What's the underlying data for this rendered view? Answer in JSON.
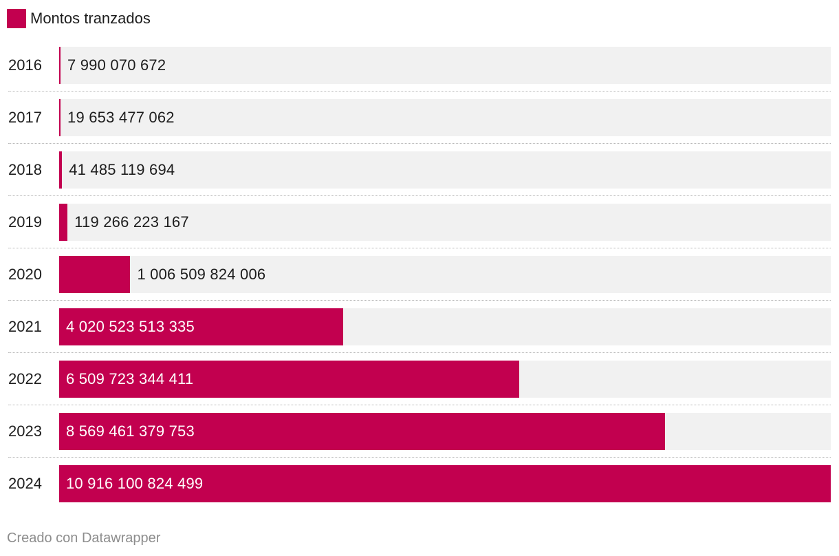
{
  "legend": {
    "label": "Montos tranzados",
    "color": "#c2004f"
  },
  "chart_data": {
    "type": "bar",
    "orientation": "horizontal",
    "categories": [
      "2016",
      "2017",
      "2018",
      "2019",
      "2020",
      "2021",
      "2022",
      "2023",
      "2024"
    ],
    "series": [
      {
        "name": "Montos tranzados",
        "color": "#c2004f",
        "values": [
          7990070672,
          19653477062,
          41485119694,
          119266223167,
          1006509824006,
          4020523513335,
          6509723344411,
          8569461379753,
          10916100824499
        ]
      }
    ],
    "value_labels": [
      "7 990 070 672",
      "19 653 477 062",
      "41 485 119 694",
      "119 266 223 167",
      "1 006 509 824 006",
      "4 020 523 513 335",
      "6 509 723 344 411",
      "8 569 461 379 753",
      "10 916 100 824 499"
    ],
    "xlim": [
      0,
      10916100824499
    ],
    "background_track_color": "#f1f1f1",
    "title": "",
    "xlabel": "",
    "ylabel": ""
  },
  "footer": {
    "credit": "Creado con Datawrapper"
  }
}
